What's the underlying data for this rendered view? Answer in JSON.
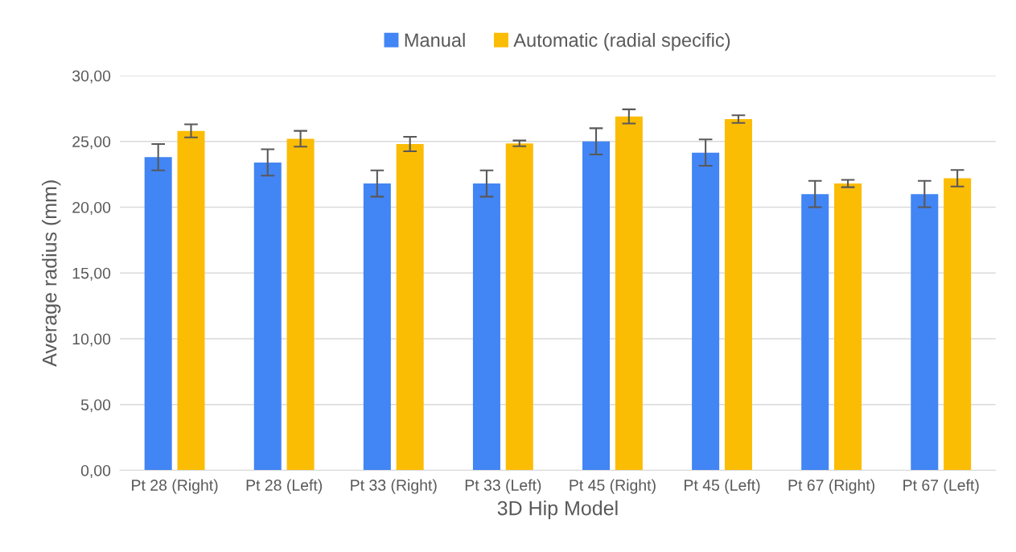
{
  "chart_data": {
    "type": "bar",
    "xlabel": "3D Hip Model",
    "ylabel": "Average radius (mm)",
    "categories": [
      "Pt 28 (Right)",
      "Pt 28 (Left)",
      "Pt 33 (Right)",
      "Pt 33 (Left)",
      "Pt 45 (Right)",
      "Pt 45 (Left)",
      "Pt 67 (Right)",
      "Pt 67 (Left)"
    ],
    "series": [
      {
        "name": "Manual",
        "color": "#4285f4",
        "values": [
          23.8,
          23.4,
          21.8,
          21.8,
          25.0,
          24.15,
          21.0,
          21.0
        ],
        "errors": [
          1.0,
          1.0,
          1.0,
          1.0,
          1.0,
          1.0,
          1.0,
          1.0
        ]
      },
      {
        "name": "Automatic (radial specific)",
        "color": "#fbbc04",
        "values": [
          25.8,
          25.2,
          24.8,
          24.85,
          26.9,
          26.7,
          21.8,
          22.2
        ],
        "errors": [
          0.5,
          0.6,
          0.55,
          0.22,
          0.54,
          0.29,
          0.28,
          0.63
        ]
      }
    ],
    "ylim": [
      0,
      30
    ],
    "yticks": [
      {
        "value": 0,
        "label": "0,00"
      },
      {
        "value": 5,
        "label": "5,00"
      },
      {
        "value": 10,
        "label": "10,00"
      },
      {
        "value": 15,
        "label": "15,00"
      },
      {
        "value": 20,
        "label": "20,00"
      },
      {
        "value": 25,
        "label": "25,00"
      },
      {
        "value": 30,
        "label": "30,00"
      }
    ],
    "grid": "y",
    "legend": "top"
  }
}
